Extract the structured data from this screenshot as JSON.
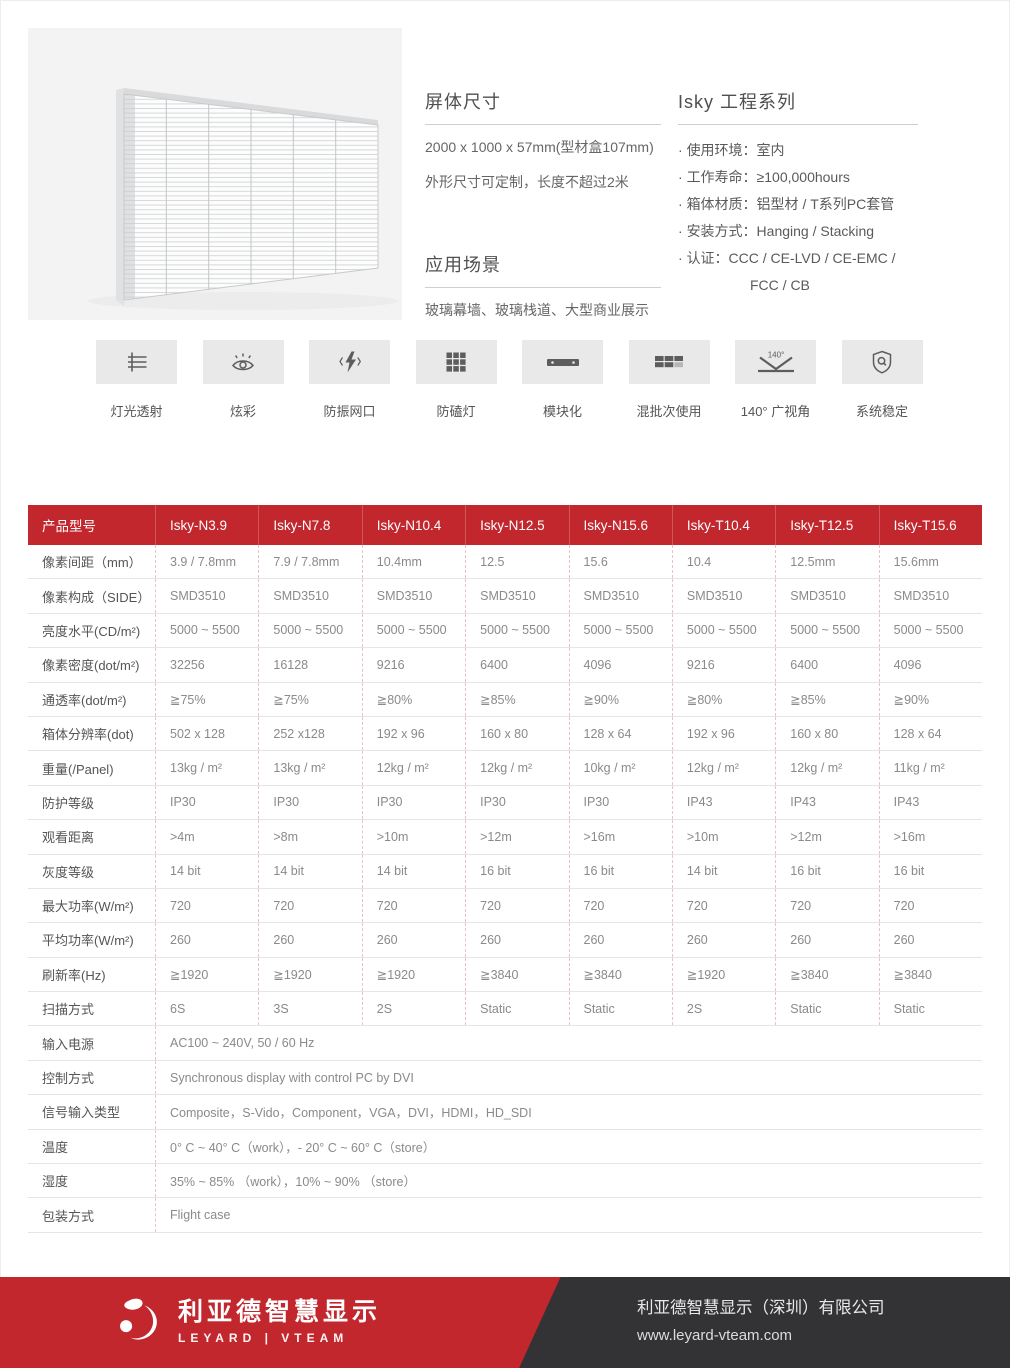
{
  "page": {
    "brand_red": "#c2272e",
    "footer_dark": "#333336",
    "icon_box_gray": "#e9e9ea",
    "product_image": "transparent-led-panel-render"
  },
  "hero": {
    "screen_size": {
      "title": "屏体尺寸",
      "lines": [
        "2000 x 1000 x 57mm(型材盒107mm)",
        "外形尺寸可定制，长度不超过2米"
      ]
    },
    "application": {
      "title": "应用场景",
      "lines": [
        "玻璃幕墙、玻璃栈道、大型商业展示"
      ]
    },
    "series": {
      "title": "Isky 工程系列",
      "bullets": [
        "使用环境：室内",
        "工作寿命：≥100,000hours",
        "箱体材质：铝型材 / T系列PC套管",
        "安装方式：Hanging / Stacking",
        "认证：CCC / CE-LVD / CE-EMC /"
      ],
      "continuation": "FCC / CB"
    }
  },
  "features": [
    {
      "icon": "light-transmission-icon",
      "label": "灯光透射"
    },
    {
      "icon": "eye-icon",
      "label": "炫彩"
    },
    {
      "icon": "lightning-port-icon",
      "label": "防振网口"
    },
    {
      "icon": "lamp-grid-icon",
      "label": "防磕灯"
    },
    {
      "icon": "module-bar-icon",
      "label": "模块化"
    },
    {
      "icon": "batch-blocks-icon",
      "label": "混批次使用"
    },
    {
      "icon": "wide-angle-icon",
      "label": "140° 广视角",
      "angle": "140°"
    },
    {
      "icon": "shield-check-icon",
      "label": "系统稳定"
    }
  ],
  "spec_table": {
    "header": [
      "产品型号",
      "Isky-N3.9",
      "Isky-N7.8",
      "Isky-N10.4",
      "Isky-N12.5",
      "Isky-N15.6",
      "Isky-T10.4",
      "Isky-T12.5",
      "Isky-T15.6"
    ],
    "rows": [
      {
        "label": "像素间距（mm）",
        "values": [
          "3.9 / 7.8mm",
          "7.9 / 7.8mm",
          "10.4mm",
          "12.5",
          "15.6",
          "10.4",
          "12.5mm",
          "15.6mm"
        ]
      },
      {
        "label": "像素构成（SIDE）",
        "values": [
          "SMD3510",
          "SMD3510",
          "SMD3510",
          "SMD3510",
          "SMD3510",
          "SMD3510",
          "SMD3510",
          "SMD3510"
        ]
      },
      {
        "label": "亮度水平(CD/m²)",
        "values": [
          "5000 ~ 5500",
          "5000 ~ 5500",
          "5000 ~ 5500",
          "5000 ~ 5500",
          "5000 ~ 5500",
          "5000 ~ 5500",
          "5000 ~ 5500",
          "5000 ~ 5500"
        ]
      },
      {
        "label": "像素密度(dot/m²)",
        "values": [
          "32256",
          "16128",
          "9216",
          "6400",
          "4096",
          "9216",
          "6400",
          "4096"
        ]
      },
      {
        "label": "通透率(dot/m²)",
        "values": [
          "≧75%",
          "≧75%",
          "≧80%",
          "≧85%",
          "≧90%",
          "≧80%",
          "≧85%",
          "≧90%"
        ]
      },
      {
        "label": "箱体分辨率(dot)",
        "values": [
          "502 x 128",
          "252 x128",
          "192 x 96",
          "160 x 80",
          "128 x 64",
          "192 x 96",
          "160 x 80",
          "128 x 64"
        ]
      },
      {
        "label": "重量(/Panel)",
        "values": [
          "13kg / m²",
          "13kg / m²",
          "12kg / m²",
          "12kg / m²",
          "10kg / m²",
          "12kg / m²",
          "12kg / m²",
          "11kg / m²"
        ]
      },
      {
        "label": "防护等级",
        "values": [
          "IP30",
          "IP30",
          "IP30",
          "IP30",
          "IP30",
          "IP43",
          "IP43",
          "IP43"
        ]
      },
      {
        "label": "观看距离",
        "values": [
          ">4m",
          ">8m",
          ">10m",
          ">12m",
          ">16m",
          ">10m",
          ">12m",
          ">16m"
        ]
      },
      {
        "label": "灰度等级",
        "values": [
          "14 bit",
          "14 bit",
          "14 bit",
          "16 bit",
          "16 bit",
          "14 bit",
          "16 bit",
          "16 bit"
        ]
      },
      {
        "label": "最大功率(W/m²)",
        "values": [
          "720",
          "720",
          "720",
          "720",
          "720",
          "720",
          "720",
          "720"
        ]
      },
      {
        "label": "平均功率(W/m²)",
        "values": [
          "260",
          "260",
          "260",
          "260",
          "260",
          "260",
          "260",
          "260"
        ]
      },
      {
        "label": "刷新率(Hz)",
        "values": [
          "≧1920",
          "≧1920",
          "≧1920",
          "≧3840",
          "≧3840",
          "≧1920",
          "≧3840",
          "≧3840"
        ]
      },
      {
        "label": "扫描方式",
        "values": [
          "6S",
          "3S",
          "2S",
          "Static",
          "Static",
          "2S",
          "Static",
          "Static"
        ]
      }
    ],
    "span_rows": [
      {
        "label": "输入电源",
        "value": "AC100 ~ 240V, 50 / 60 Hz"
      },
      {
        "label": "控制方式",
        "value": "Synchronous display with control PC by DVI"
      },
      {
        "label": "信号输入类型",
        "value": "Composite，S-Vido，Component，VGA，DVI，HDMI，HD_SDI"
      },
      {
        "label": "温度",
        "value": "0° C ~ 40° C（work），- 20° C ~ 60° C（store）"
      },
      {
        "label": "湿度",
        "value": "35% ~ 85% （work），10% ~ 90% （store）"
      },
      {
        "label": "包装方式",
        "value": "Flight case"
      }
    ]
  },
  "footer": {
    "brand_cn": "利亚德智慧显示",
    "brand_en": "LEYARD | VTEAM",
    "company_name": "利亚德智慧显示（深圳）有限公司",
    "website": "www.leyard-vteam.com"
  }
}
